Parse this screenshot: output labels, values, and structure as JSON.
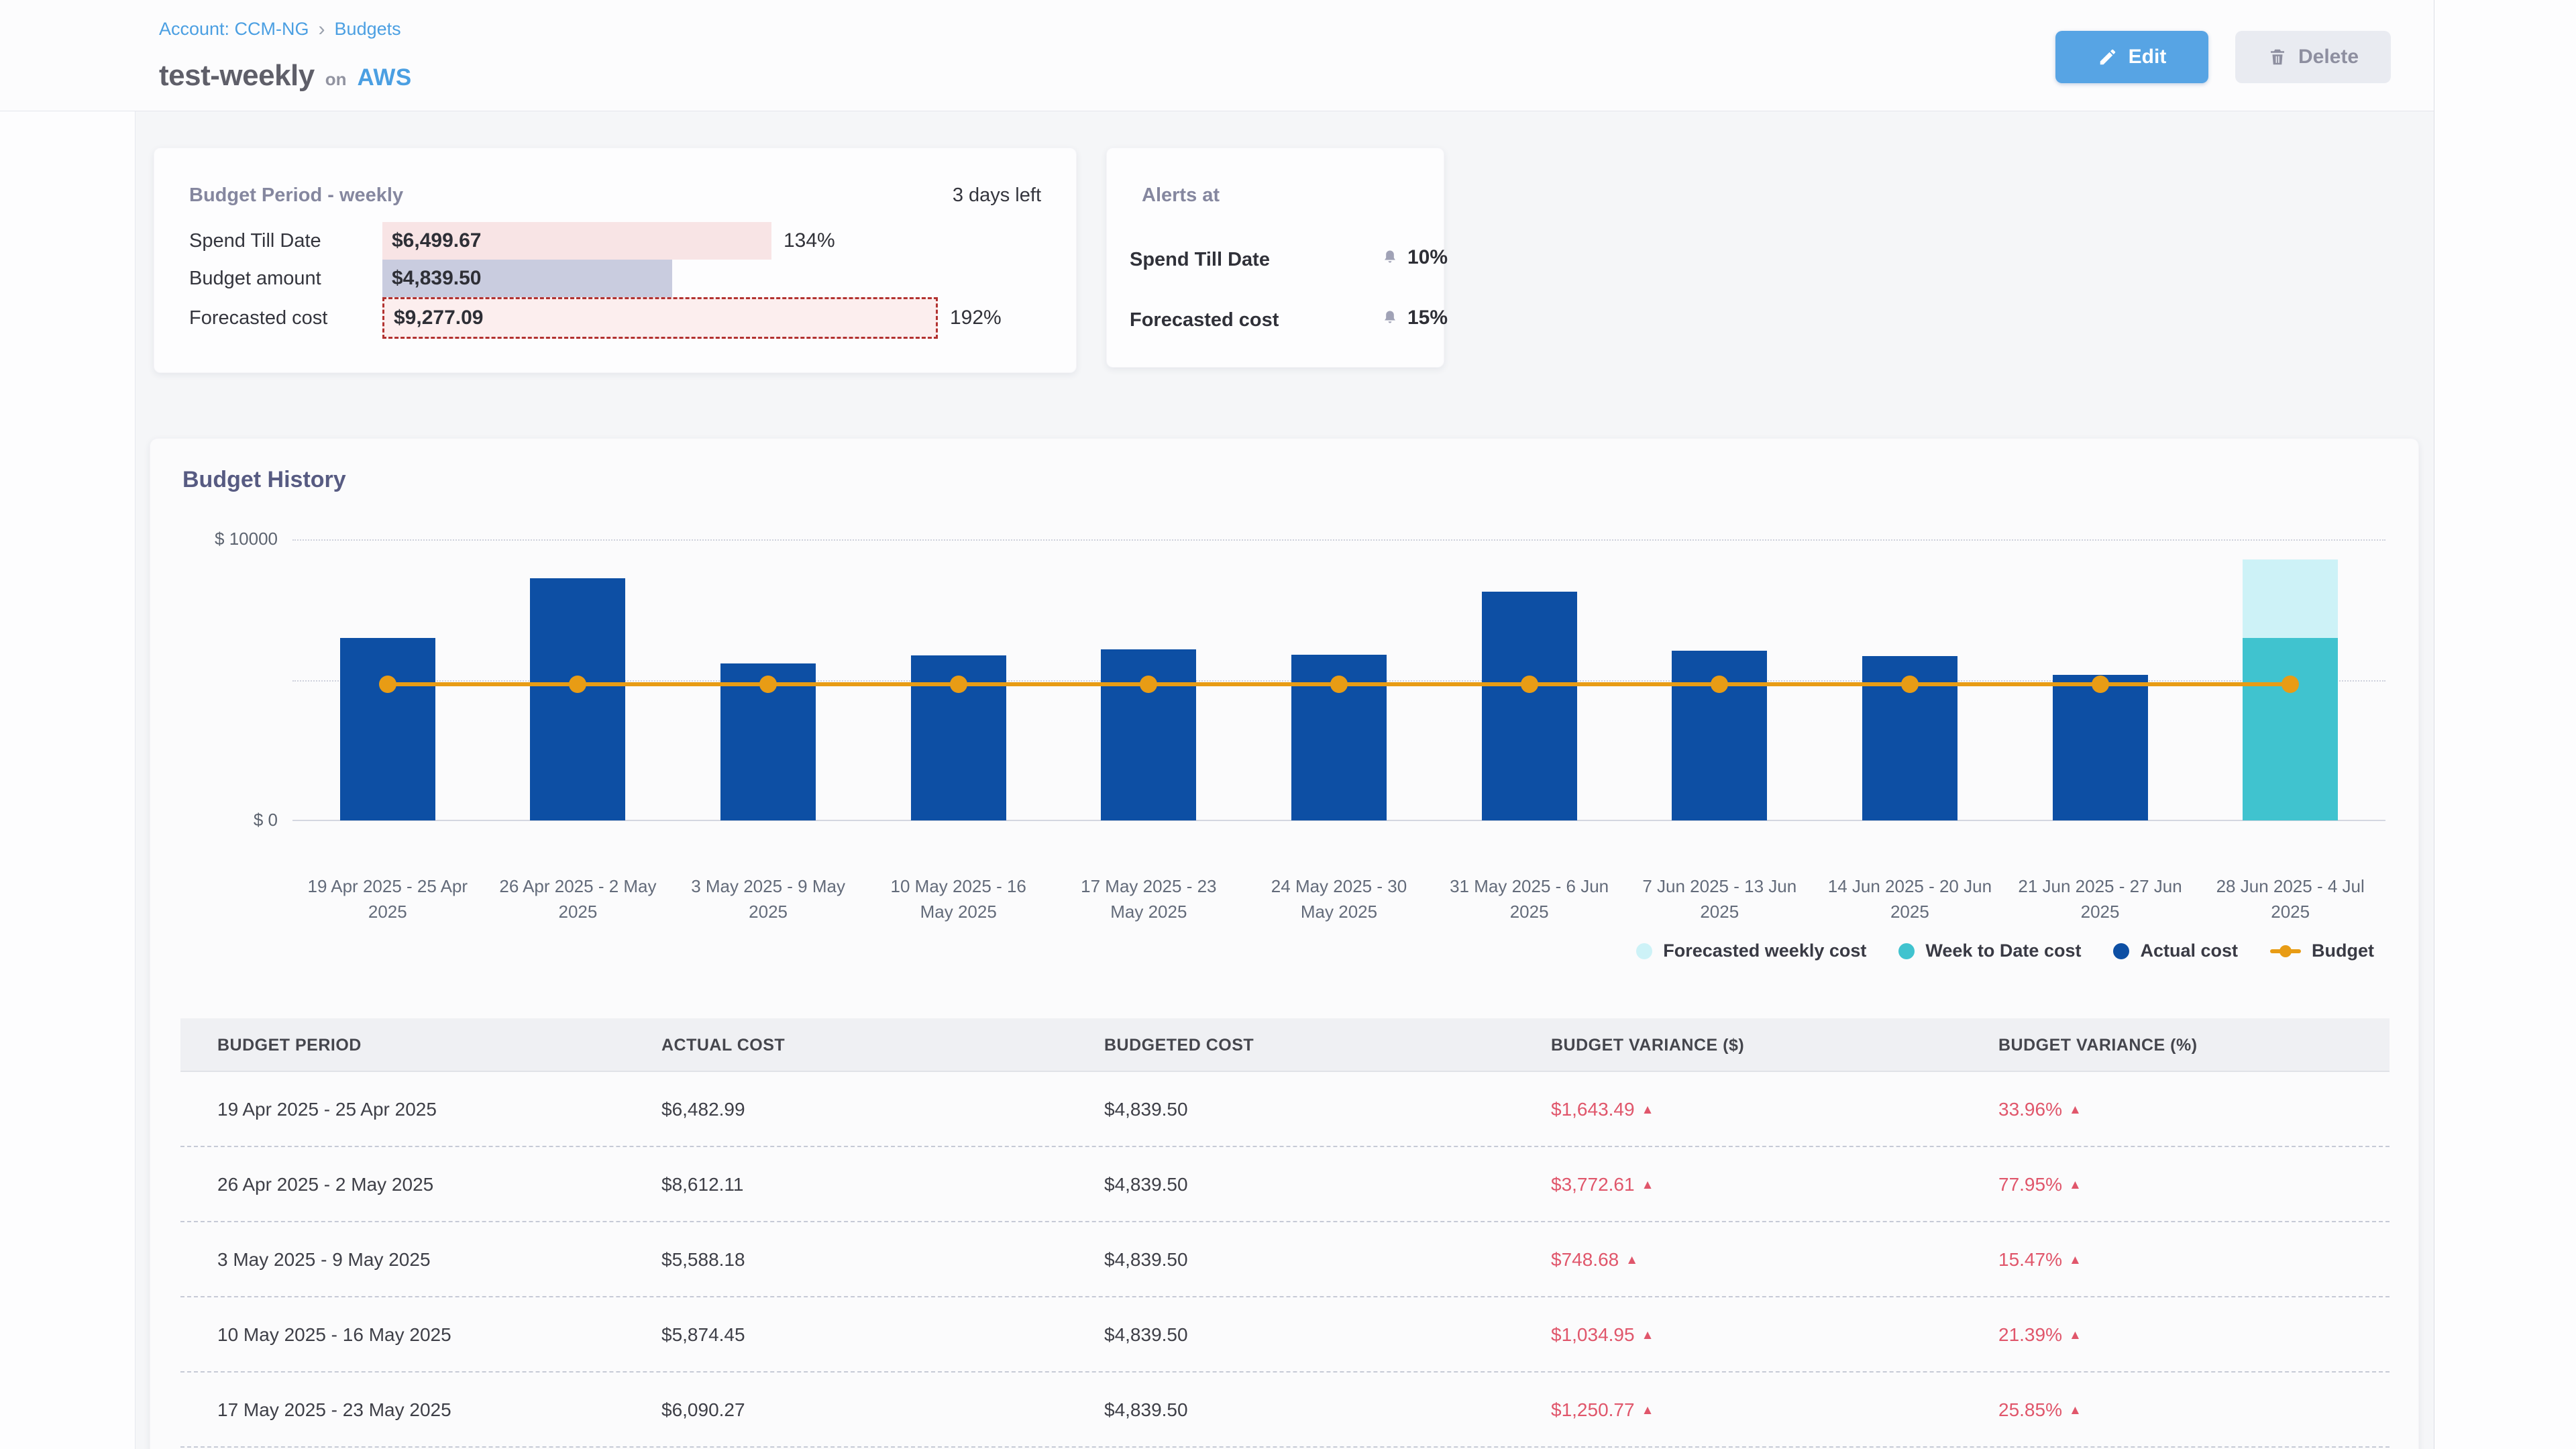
{
  "breadcrumb": {
    "account_label": "Account: CCM-NG",
    "separator": "›",
    "current": "Budgets"
  },
  "header": {
    "budget_name": "test-weekly",
    "connector": "on",
    "provider": "AWS",
    "edit_button": "Edit",
    "delete_button": "Delete"
  },
  "budget_period_card": {
    "title": "Budget Period - weekly",
    "days_left": "3 days left",
    "budget_amount": 4839.5,
    "rows": [
      {
        "label": "Spend Till Date",
        "value_label": "$6,499.67",
        "amount": 6499.67,
        "percent": "134%",
        "style": "overspend"
      },
      {
        "label": "Budget amount",
        "value_label": "$4,839.50",
        "amount": 4839.5,
        "percent": "",
        "style": "budget"
      },
      {
        "label": "Forecasted cost",
        "value_label": "$9,277.09",
        "amount": 9277.09,
        "percent": "192%",
        "style": "forecast"
      }
    ]
  },
  "alerts_card": {
    "title": "Alerts at",
    "alerts": [
      {
        "label": "Spend Till Date",
        "threshold": "10%"
      },
      {
        "label": "Forecasted cost",
        "threshold": "15%"
      }
    ]
  },
  "chart_data": {
    "type": "bar",
    "title": "Budget History",
    "categories": [
      "19 Apr 2025 - 25 Apr 2025",
      "26 Apr 2025 - 2 May 2025",
      "3 May 2025 - 9 May 2025",
      "10 May 2025 - 16 May 2025",
      "17 May 2025 - 23 May 2025",
      "24 May 2025 - 30 May 2025",
      "31 May 2025 - 6 Jun 2025",
      "7 Jun 2025 - 13 Jun 2025",
      "14 Jun 2025 - 20 Jun 2025",
      "21 Jun 2025 - 27 Jun 2025",
      "28 Jun 2025 - 4 Jul 2025"
    ],
    "series": [
      {
        "name": "Actual cost",
        "type": "bar",
        "color": "#0d4fa4",
        "values": [
          6482.99,
          8612.11,
          5588.18,
          5874.45,
          6090.27,
          5900,
          8150,
          6050,
          5850,
          5180,
          null
        ]
      },
      {
        "name": "Week to Date cost",
        "type": "bar",
        "color": "#40c3cf",
        "values": [
          null,
          null,
          null,
          null,
          null,
          null,
          null,
          null,
          null,
          null,
          6499.67
        ]
      },
      {
        "name": "Forecasted weekly cost",
        "type": "bar",
        "color": "#cdf2f7",
        "values": [
          null,
          null,
          null,
          null,
          null,
          null,
          null,
          null,
          null,
          null,
          9277.09
        ]
      },
      {
        "name": "Budget",
        "type": "line",
        "color": "#e89c15",
        "values": [
          4839.5,
          4839.5,
          4839.5,
          4839.5,
          4839.5,
          4839.5,
          4839.5,
          4839.5,
          4839.5,
          4839.5,
          4839.5
        ]
      }
    ],
    "ylim": [
      0,
      10000
    ],
    "yticks": [
      {
        "value": 10000,
        "label": "$ 10000"
      },
      {
        "value": 5000,
        "label": ""
      },
      {
        "value": 0,
        "label": "$ 0"
      }
    ],
    "legend": [
      "Forecasted weekly cost",
      "Week to Date cost",
      "Actual cost",
      "Budget"
    ],
    "legend_position": "bottom-right",
    "grid": "horizontal"
  },
  "table": {
    "headers": [
      "BUDGET PERIOD",
      "ACTUAL COST",
      "BUDGETED COST",
      "BUDGET VARIANCE ($)",
      "BUDGET VARIANCE (%)"
    ],
    "rows": [
      {
        "period": "19 Apr 2025 - 25 Apr 2025",
        "actual": "$6,482.99",
        "budgeted": "$4,839.50",
        "variance_usd": "$1,643.49",
        "variance_pct": "33.96%",
        "direction": "up"
      },
      {
        "period": "26 Apr 2025 - 2 May 2025",
        "actual": "$8,612.11",
        "budgeted": "$4,839.50",
        "variance_usd": "$3,772.61",
        "variance_pct": "77.95%",
        "direction": "up"
      },
      {
        "period": "3 May 2025 - 9 May 2025",
        "actual": "$5,588.18",
        "budgeted": "$4,839.50",
        "variance_usd": "$748.68",
        "variance_pct": "15.47%",
        "direction": "up"
      },
      {
        "period": "10 May 2025 - 16 May 2025",
        "actual": "$5,874.45",
        "budgeted": "$4,839.50",
        "variance_usd": "$1,034.95",
        "variance_pct": "21.39%",
        "direction": "up"
      },
      {
        "period": "17 May 2025 - 23 May 2025",
        "actual": "$6,090.27",
        "budgeted": "$4,839.50",
        "variance_usd": "$1,250.77",
        "variance_pct": "25.85%",
        "direction": "up"
      }
    ]
  },
  "colors": {
    "accent_blue": "#4b9fe2",
    "edit_button_bg": "#57a4e4",
    "bar_actual": "#0d4fa4",
    "bar_week_to_date": "#40c3cf",
    "bar_forecast": "#cdf2f7",
    "budget_line": "#e89c15",
    "variance_red": "#e0566b",
    "overspend_fill": "#f8e4e5",
    "budget_fill": "#c9ccdf",
    "forecast_fill": "#fceeee",
    "forecast_border": "#b23230"
  }
}
